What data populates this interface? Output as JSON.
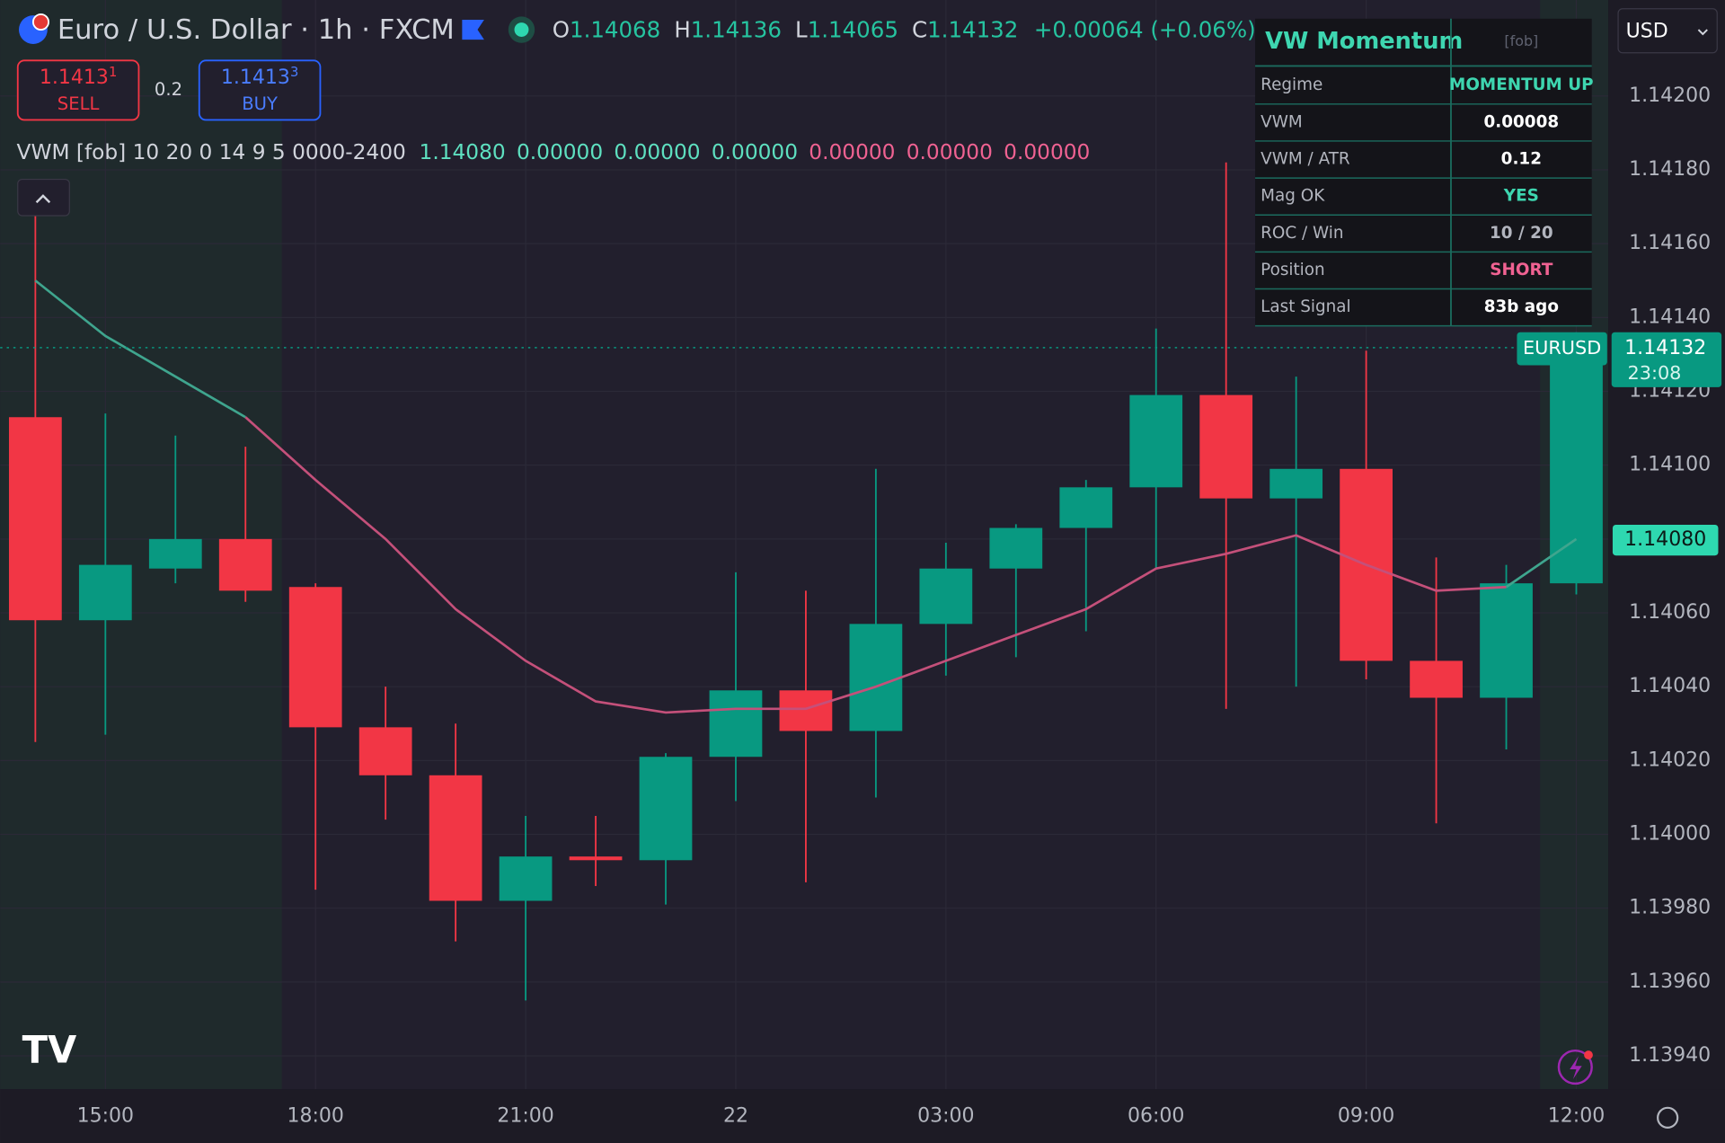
{
  "header": {
    "symbol": "Euro / U.S. Dollar · 1h · FXCM",
    "o_label": "O",
    "h_label": "H",
    "l_label": "L",
    "c_label": "C",
    "change": "+0.00064 (+0.06%)"
  },
  "trade": {
    "sell_price": "1.1413",
    "sell_pip": "1",
    "sell": "SELL",
    "spread": "0.2",
    "buy_price": "1.1413",
    "buy_pip": "3",
    "buy": "BUY"
  },
  "indicator": {
    "label": "VWM [fob] 10 20 0 14 9 5 0000-2400",
    "values": [
      "1.14080",
      "0.00000",
      "0.00000",
      "0.00000",
      "0.00000",
      "0.00000",
      "0.00000"
    ]
  },
  "panel": {
    "title": "VW Momentum",
    "tag": "[fob]",
    "rows": [
      [
        "Regime",
        "MOMENTUM UP"
      ],
      [
        "VWM",
        "0.00008"
      ],
      [
        "VWM / ATR",
        "0.12"
      ],
      [
        "Mag OK",
        "YES"
      ],
      [
        "ROC / Win",
        "10 / 20"
      ],
      [
        "Position",
        "SHORT"
      ],
      [
        "Last Signal",
        "83b ago"
      ]
    ]
  },
  "currency": "USD",
  "badges": {
    "symbol": "EURUSD",
    "countdown": "23:08",
    "indicator": "1.14080"
  },
  "chart_data": {
    "type": "candlestick",
    "categories": [
      null,
      "15:00",
      null,
      null,
      "18:00",
      null,
      null,
      "21:00",
      null,
      null,
      "22",
      null,
      null,
      "03:00",
      null,
      null,
      "06:00",
      null,
      null,
      "09:00",
      null,
      null,
      "12:00"
    ],
    "open": [
      1.14113,
      1.14058,
      1.14072,
      1.1408,
      1.14067,
      1.14029,
      1.14016,
      1.13982,
      1.13994,
      1.13993,
      1.14021,
      1.14039,
      1.14028,
      1.14057,
      1.14072,
      1.14083,
      1.14094,
      1.14119,
      1.14091,
      1.14099,
      1.14047,
      1.14037,
      1.14068
    ],
    "high": [
      1.14172,
      1.14114,
      1.14108,
      1.14105,
      1.14068,
      1.1404,
      1.1403,
      1.14005,
      1.14005,
      1.14022,
      1.14071,
      1.14066,
      1.14099,
      1.14079,
      1.14084,
      1.14096,
      1.14137,
      1.14182,
      1.14124,
      1.14131,
      1.14075,
      1.14073,
      1.14136
    ],
    "low": [
      1.14025,
      1.14027,
      1.14068,
      1.14063,
      1.13985,
      1.14004,
      1.13971,
      1.13955,
      1.13986,
      1.13981,
      1.14009,
      1.13987,
      1.1401,
      1.14043,
      1.14048,
      1.14055,
      1.14072,
      1.14034,
      1.1404,
      1.14042,
      1.14003,
      1.14023,
      1.14065
    ],
    "close": [
      1.14058,
      1.14073,
      1.1408,
      1.14066,
      1.14029,
      1.14016,
      1.13982,
      1.13994,
      1.13993,
      1.14021,
      1.14039,
      1.14028,
      1.14057,
      1.14072,
      1.14083,
      1.14094,
      1.14119,
      1.14091,
      1.14099,
      1.14047,
      1.14037,
      1.14068,
      1.14132
    ],
    "up_color": "#089981",
    "down_color": "#f23645",
    "overlay": {
      "values": [
        1.1415,
        1.14135,
        1.14124,
        1.14113,
        1.14096,
        1.1408,
        1.14061,
        1.14047,
        1.14036,
        1.14033,
        1.14034,
        1.14034,
        1.1404,
        1.14047,
        1.14054,
        1.14061,
        1.14072,
        1.14076,
        1.14081,
        1.14073,
        1.14066,
        1.14067,
        1.1408
      ],
      "colors": [
        "#3fa58e",
        "#3fa58e",
        "#3fa58e",
        "#3fa58e",
        "#c4507a",
        "#c4507a",
        "#c4507a",
        "#c4507a",
        "#c4507a",
        "#c4507a",
        "#c4507a",
        "#c4507a",
        "#c4507a",
        "#c4507a",
        "#c4507a",
        "#c4507a",
        "#c4507a",
        "#c4507a",
        "#c4507a",
        "#c4507a",
        "#c4507a",
        "#c4507a",
        "#3fa58e"
      ]
    },
    "ylim": [
      1.13931,
      1.14226
    ],
    "yticks": [
      {
        "value": 1.142,
        "label": "1.14200"
      },
      {
        "value": 1.1418,
        "label": "1.14180"
      },
      {
        "value": 1.1416,
        "label": "1.14160"
      },
      {
        "value": 1.1414,
        "label": "1.14140"
      },
      {
        "value": 1.1412,
        "label": "1.14120"
      },
      {
        "value": 1.141,
        "label": "1.14100"
      },
      {
        "value": 1.1408,
        "label": "1.14080"
      },
      {
        "value": 1.1406,
        "label": "1.14060"
      },
      {
        "value": 1.1404,
        "label": "1.14040"
      },
      {
        "value": 1.1402,
        "label": "1.14020"
      },
      {
        "value": 1.14,
        "label": "1.14000"
      },
      {
        "value": 1.1398,
        "label": "1.13980"
      },
      {
        "value": 1.1396,
        "label": "1.13960"
      },
      {
        "value": 1.1394,
        "label": "1.13940"
      }
    ],
    "grid": true
  }
}
